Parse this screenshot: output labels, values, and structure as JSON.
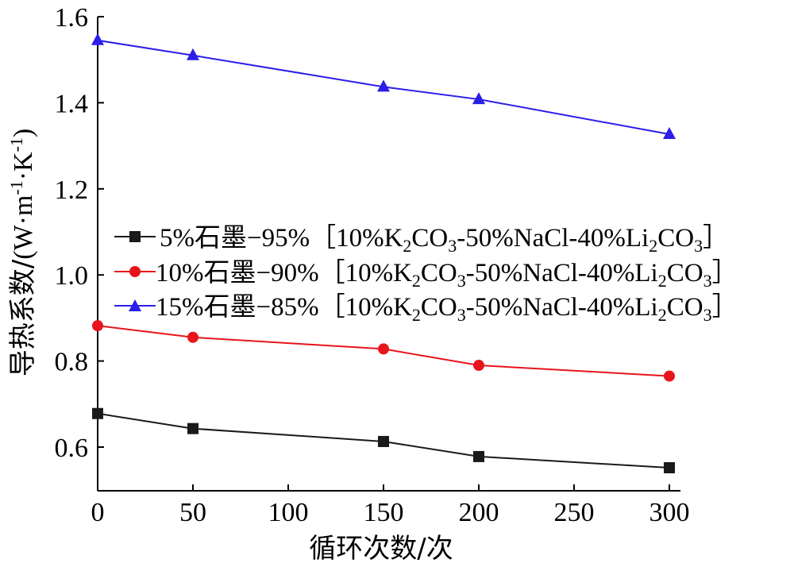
{
  "chart_data": {
    "type": "line",
    "title": "",
    "xlabel": "循环次数/次",
    "ylabel_main": "导热系数/",
    "ylabel_unit": {
      "open": "(W·m",
      "exp1": "-1",
      "mid": "·K",
      "exp2": "-1",
      "close": ")"
    },
    "x": [
      0,
      50,
      150,
      200,
      300
    ],
    "xlim": [
      0,
      305
    ],
    "ylim": [
      0.5,
      1.6
    ],
    "xticks": [
      0,
      50,
      100,
      150,
      200,
      250,
      300
    ],
    "yticks": [
      0.6,
      0.8,
      1.0,
      1.2,
      1.4,
      1.6
    ],
    "ytick_labels": [
      "0.6",
      "0.8",
      "1.0",
      "1.2",
      "1.4",
      "1.6"
    ],
    "grid": false,
    "legend_position": "center",
    "series": [
      {
        "name": "5%石墨−95%［10%K2CO3-50%NaCl-40%Li2CO3］",
        "legend_parts": {
          "pre": "5%石墨−95%［10%K",
          "s1": "2",
          "mid1": "CO",
          "s2": "3",
          "mid2": "-50%NaCl-40%Li",
          "s3": "2",
          "mid3": "CO",
          "s4": "3",
          "post": "］"
        },
        "color": "#1a1a1a",
        "marker": "square",
        "values": [
          0.678,
          0.643,
          0.613,
          0.578,
          0.552
        ]
      },
      {
        "name": "10%石墨−90%［10%K2CO3-50%NaCl-40%Li2CO3］",
        "legend_parts": {
          "pre": "10%石墨−90%［10%K",
          "s1": "2",
          "mid1": "CO",
          "s2": "3",
          "mid2": "-50%NaCl-40%Li",
          "s3": "2",
          "mid3": "CO",
          "s4": "3",
          "post": "］"
        },
        "color": "#e8141c",
        "marker": "circle",
        "values": [
          0.882,
          0.855,
          0.828,
          0.79,
          0.765
        ]
      },
      {
        "name": "15%石墨−85%［10%K2CO3-50%NaCl-40%Li2CO3］",
        "legend_parts": {
          "pre": "15%石墨−85%［10%K",
          "s1": "2",
          "mid1": "CO",
          "s2": "3",
          "mid2": "-50%NaCl-40%Li",
          "s3": "2",
          "mid3": "CO",
          "s4": "3",
          "post": "］"
        },
        "color": "#2b1ee8",
        "marker": "triangle",
        "values": [
          1.545,
          1.51,
          1.437,
          1.408,
          1.327
        ]
      }
    ]
  }
}
